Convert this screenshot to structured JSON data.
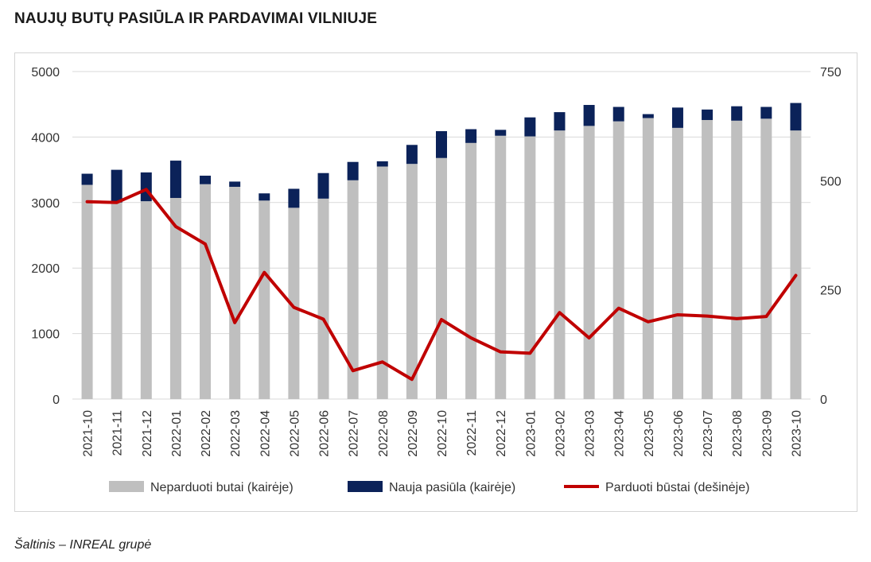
{
  "title": "NAUJŲ BUTŲ PASIŪLA IR PARDAVIMAI VILNIUJE",
  "source": "Šaltinis – INREAL grupė",
  "chart_data": {
    "type": "bar",
    "stacked": true,
    "categories": [
      "2021-10",
      "2021-11",
      "2021-12",
      "2022-01",
      "2022-02",
      "2022-03",
      "2022-04",
      "2022-05",
      "2022-06",
      "2022-07",
      "2022-08",
      "2022-09",
      "2022-10",
      "2022-11",
      "2022-12",
      "2023-01",
      "2023-02",
      "2023-03",
      "2023-04",
      "2023-05",
      "2023-06",
      "2023-07",
      "2023-08",
      "2023-09",
      "2023-10"
    ],
    "series": [
      {
        "name": "Neparduoti butai (kairėje)",
        "type": "bar",
        "axis": "left",
        "color": "#bfbfbf",
        "values": [
          3270,
          3000,
          3020,
          3070,
          3280,
          3240,
          3030,
          2920,
          3060,
          3340,
          3550,
          3590,
          3680,
          3910,
          4020,
          4010,
          4100,
          4170,
          4240,
          4290,
          4140,
          4260,
          4250,
          4280,
          4100
        ]
      },
      {
        "name": "Nauja pasiūla (kairėje)",
        "type": "bar",
        "axis": "left",
        "color": "#0b2259",
        "values": [
          170,
          500,
          440,
          570,
          130,
          80,
          110,
          290,
          390,
          280,
          80,
          290,
          410,
          210,
          90,
          290,
          280,
          320,
          220,
          60,
          310,
          160,
          220,
          180,
          420
        ]
      },
      {
        "name": "Parduoti būstai (dešinėje)",
        "type": "line",
        "axis": "right",
        "color": "#c00000",
        "values": [
          452,
          450,
          480,
          395,
          355,
          175,
          290,
          210,
          183,
          65,
          85,
          45,
          182,
          140,
          108,
          105,
          198,
          140,
          208,
          177,
          193,
          190,
          184,
          189,
          283
        ]
      }
    ],
    "y_left": {
      "min": 0,
      "max": 5000,
      "ticks": [
        0,
        1000,
        2000,
        3000,
        4000,
        5000
      ]
    },
    "y_right": {
      "min": 0,
      "max": 750,
      "ticks": [
        0,
        250,
        500,
        750
      ]
    },
    "grid": true,
    "legend_position": "bottom"
  }
}
